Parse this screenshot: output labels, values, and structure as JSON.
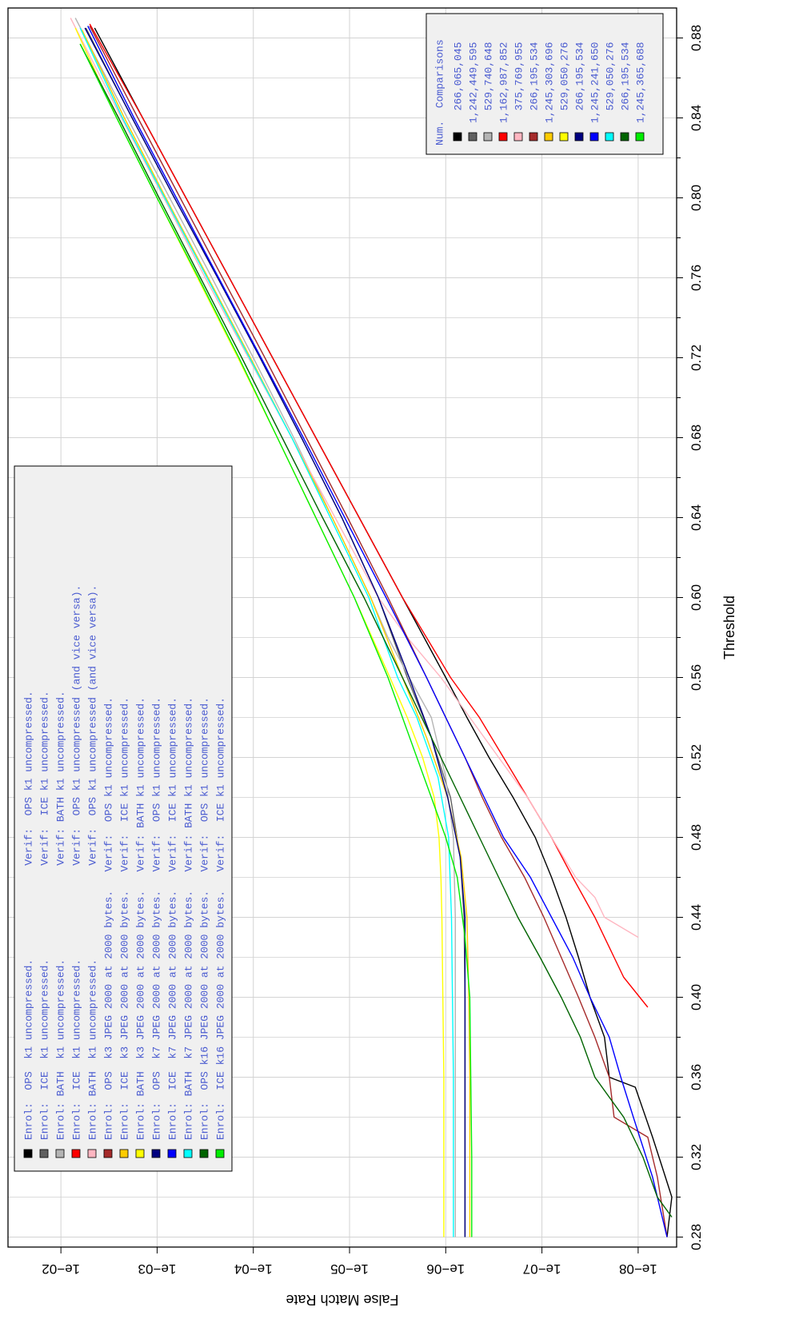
{
  "chart_data": {
    "type": "line",
    "orientation": "rotated-90-clockwise",
    "xlabel": "Threshold",
    "ylabel": "False Match Rate",
    "xlim": [
      0.275,
      0.895
    ],
    "ylim_log10": [
      -8.4,
      -1.45
    ],
    "y_scale": "log",
    "grid": true,
    "x_ticks": [
      "0.28",
      "0.32",
      "0.36",
      "0.40",
      "0.44",
      "0.48",
      "0.52",
      "0.56",
      "0.60",
      "0.64",
      "0.68",
      "0.72",
      "0.76",
      "0.80",
      "0.84",
      "0.88"
    ],
    "x_tick_values": [
      0.28,
      0.32,
      0.36,
      0.4,
      0.44,
      0.48,
      0.52,
      0.56,
      0.6,
      0.64,
      0.68,
      0.72,
      0.76,
      0.8,
      0.84,
      0.88
    ],
    "y_ticks": [
      "1e−02",
      "1e−03",
      "1e−04",
      "1e−05",
      "1e−06",
      "1e−07",
      "1e−08"
    ],
    "y_tick_values": [
      -2,
      -3,
      -4,
      -5,
      -6,
      -7,
      -8
    ],
    "legend_main": {
      "placement": "lower-left",
      "entries": [
        "Enrol:  OPS  k1 uncompressed.               Verif:  OPS k1 uncompressed.",
        "Enrol:  ICE  k1 uncompressed.               Verif:  ICE k1 uncompressed.",
        "Enrol: BATH  k1 uncompressed.               Verif: BATH k1 uncompressed.",
        "Enrol:  ICE  k1 uncompressed.               Verif:  OPS k1 uncompressed (and vice versa).",
        "Enrol: BATH  k1 uncompressed.               Verif:  OPS k1 uncompressed (and vice versa).",
        "Enrol:  OPS  k3 JPEG 2000 at 2000 bytes.   Verif:  OPS k1 uncompressed.",
        "Enrol:  ICE  k3 JPEG 2000 at 2000 bytes.   Verif:  ICE k1 uncompressed.",
        "Enrol: BATH  k3 JPEG 2000 at 2000 bytes.   Verif: BATH k1 uncompressed.",
        "Enrol:  OPS  k7 JPEG 2000 at 2000 bytes.   Verif:  OPS k1 uncompressed.",
        "Enrol:  ICE  k7 JPEG 2000 at 2000 bytes.   Verif:  ICE k1 uncompressed.",
        "Enrol: BATH  k7 JPEG 2000 at 2000 bytes.   Verif: BATH k1 uncompressed.",
        "Enrol:  OPS k16 JPEG 2000 at 2000 bytes.   Verif:  OPS k1 uncompressed.",
        "Enrol:  ICE k16 JPEG 2000 at 2000 bytes.   Verif:  ICE k1 uncompressed."
      ]
    },
    "legend_counts": {
      "placement": "upper-right",
      "header": "Num.  Comparisons",
      "entries": [
        "  266,065,045",
        "1,242,449,595",
        "  529,740,648",
        "1,162,987,852",
        "  375,769,955",
        "  266,195,534",
        "1,245,303,696",
        "  529,050,276",
        "  266,195,534",
        "1,245,241,650",
        "  529,050,276",
        "  266,195,534",
        "1,245,365,688"
      ]
    },
    "series": [
      {
        "color": "#000000",
        "x": [
          0.28,
          0.3,
          0.315,
          0.33,
          0.355,
          0.36,
          0.38,
          0.4,
          0.42,
          0.44,
          0.46,
          0.48,
          0.5,
          0.52,
          0.54,
          0.56,
          0.6,
          0.64,
          0.68,
          0.72,
          0.76,
          0.8,
          0.84,
          0.885
        ],
        "y": [
          -8.3,
          -8.35,
          -8.25,
          -8.15,
          -7.97,
          -7.7,
          -7.65,
          -7.5,
          -7.38,
          -7.25,
          -7.1,
          -6.93,
          -6.7,
          -6.45,
          -6.22,
          -6.0,
          -5.55,
          -5.1,
          -4.65,
          -4.2,
          -3.75,
          -3.3,
          -2.85,
          -2.35
        ]
      },
      {
        "color": "#606060",
        "x": [
          0.28,
          0.32,
          0.36,
          0.4,
          0.44,
          0.47,
          0.5,
          0.53,
          0.56,
          0.6,
          0.64,
          0.68,
          0.72,
          0.76,
          0.8,
          0.84,
          0.885
        ],
        "y": [
          -6.2,
          -6.2,
          -6.2,
          -6.2,
          -6.19,
          -6.15,
          -6.05,
          -5.85,
          -5.6,
          -5.3,
          -4.92,
          -4.5,
          -4.07,
          -3.63,
          -3.18,
          -2.74,
          -2.26
        ]
      },
      {
        "color": "#b4b4b4",
        "x": [
          0.28,
          0.36,
          0.44,
          0.48,
          0.51,
          0.54,
          0.56,
          0.58,
          0.6,
          0.64,
          0.68,
          0.72,
          0.76,
          0.8,
          0.84,
          0.89
        ],
        "y": [
          -6.1,
          -6.1,
          -6.1,
          -6.08,
          -6.0,
          -5.85,
          -5.62,
          -5.4,
          -5.22,
          -4.82,
          -4.42,
          -4.0,
          -3.57,
          -3.13,
          -2.69,
          -2.15
        ]
      },
      {
        "color": "#ff0000",
        "x": [
          0.395,
          0.41,
          0.42,
          0.44,
          0.46,
          0.48,
          0.5,
          0.52,
          0.54,
          0.56,
          0.58,
          0.6,
          0.64,
          0.68,
          0.72,
          0.76,
          0.8,
          0.84,
          0.887
        ],
        "y": [
          -8.1,
          -7.85,
          -7.75,
          -7.55,
          -7.32,
          -7.1,
          -6.85,
          -6.6,
          -6.35,
          -6.05,
          -5.8,
          -5.55,
          -5.1,
          -4.65,
          -4.2,
          -3.75,
          -3.3,
          -2.85,
          -2.3
        ]
      },
      {
        "color": "#ffb6c1",
        "x": [
          0.43,
          0.44,
          0.45,
          0.46,
          0.48,
          0.5,
          0.52,
          0.54,
          0.56,
          0.58,
          0.6,
          0.64,
          0.68,
          0.72,
          0.76,
          0.8,
          0.84,
          0.89
        ],
        "y": [
          -8.0,
          -7.65,
          -7.55,
          -7.35,
          -7.1,
          -6.85,
          -6.55,
          -6.25,
          -5.95,
          -5.6,
          -5.3,
          -4.85,
          -4.4,
          -3.95,
          -3.5,
          -3.07,
          -2.63,
          -2.1
        ]
      },
      {
        "color": "#a52a2a",
        "x": [
          0.28,
          0.31,
          0.33,
          0.34,
          0.36,
          0.38,
          0.4,
          0.42,
          0.44,
          0.46,
          0.48,
          0.5,
          0.52,
          0.54,
          0.56,
          0.6,
          0.64,
          0.68,
          0.72,
          0.76,
          0.8,
          0.84,
          0.886
        ],
        "y": [
          -8.3,
          -8.2,
          -8.1,
          -7.75,
          -7.7,
          -7.55,
          -7.38,
          -7.2,
          -7.02,
          -6.82,
          -6.58,
          -6.38,
          -6.2,
          -6.0,
          -5.8,
          -5.4,
          -4.98,
          -4.55,
          -4.12,
          -3.68,
          -3.24,
          -2.8,
          -2.3
        ]
      },
      {
        "color": "#ffcc00",
        "x": [
          0.28,
          0.32,
          0.36,
          0.4,
          0.44,
          0.47,
          0.5,
          0.53,
          0.56,
          0.6,
          0.64,
          0.68,
          0.72,
          0.76,
          0.8,
          0.84,
          0.884
        ],
        "y": [
          -6.25,
          -6.25,
          -6.25,
          -6.24,
          -6.22,
          -6.16,
          -6.02,
          -5.8,
          -5.55,
          -5.22,
          -4.82,
          -4.4,
          -3.97,
          -3.53,
          -3.09,
          -2.66,
          -2.22
        ]
      },
      {
        "color": "#ffff00",
        "x": [
          0.28,
          0.32,
          0.36,
          0.4,
          0.44,
          0.46,
          0.48,
          0.5,
          0.52,
          0.54,
          0.56,
          0.6,
          0.64,
          0.68,
          0.72,
          0.76,
          0.8,
          0.84,
          0.885
        ],
        "y": [
          -5.98,
          -5.98,
          -5.98,
          -5.97,
          -5.96,
          -5.95,
          -5.93,
          -5.88,
          -5.76,
          -5.6,
          -5.42,
          -5.05,
          -4.65,
          -4.25,
          -3.84,
          -3.42,
          -3.0,
          -2.58,
          -2.15
        ]
      },
      {
        "color": "#000080",
        "x": [
          0.28,
          0.32,
          0.36,
          0.4,
          0.44,
          0.47,
          0.5,
          0.53,
          0.56,
          0.6,
          0.64,
          0.68,
          0.72,
          0.76,
          0.8,
          0.84,
          0.885
        ],
        "y": [
          -6.2,
          -6.2,
          -6.2,
          -6.2,
          -6.2,
          -6.15,
          -6.02,
          -5.85,
          -5.62,
          -5.3,
          -4.92,
          -4.5,
          -4.07,
          -3.63,
          -3.18,
          -2.74,
          -2.25
        ]
      },
      {
        "color": "#0000ff",
        "x": [
          0.28,
          0.31,
          0.34,
          0.36,
          0.38,
          0.4,
          0.42,
          0.44,
          0.46,
          0.48,
          0.5,
          0.52,
          0.54,
          0.56,
          0.6,
          0.64,
          0.68,
          0.72,
          0.76,
          0.8,
          0.84,
          0.886
        ],
        "y": [
          -8.3,
          -8.15,
          -7.95,
          -7.82,
          -7.7,
          -7.5,
          -7.32,
          -7.1,
          -6.88,
          -6.6,
          -6.4,
          -6.2,
          -6.0,
          -5.8,
          -5.38,
          -4.95,
          -4.52,
          -4.08,
          -3.64,
          -3.2,
          -2.76,
          -2.28
        ]
      },
      {
        "color": "#00ffff",
        "x": [
          0.28,
          0.32,
          0.36,
          0.4,
          0.44,
          0.48,
          0.51,
          0.54,
          0.56,
          0.58,
          0.6,
          0.64,
          0.68,
          0.72,
          0.76,
          0.8,
          0.84,
          0.885
        ],
        "y": [
          -6.08,
          -6.08,
          -6.08,
          -6.07,
          -6.06,
          -6.03,
          -5.92,
          -5.7,
          -5.5,
          -5.35,
          -5.2,
          -4.8,
          -4.4,
          -3.96,
          -3.52,
          -3.08,
          -2.64,
          -2.2
        ]
      },
      {
        "color": "#006400",
        "x": [
          0.29,
          0.3,
          0.32,
          0.34,
          0.36,
          0.38,
          0.4,
          0.42,
          0.44,
          0.46,
          0.48,
          0.5,
          0.52,
          0.54,
          0.56,
          0.6,
          0.64,
          0.68,
          0.72,
          0.76,
          0.8,
          0.84,
          0.877
        ],
        "y": [
          -8.35,
          -8.2,
          -8.05,
          -7.85,
          -7.55,
          -7.4,
          -7.2,
          -6.98,
          -6.75,
          -6.55,
          -6.35,
          -6.15,
          -5.95,
          -5.75,
          -5.55,
          -5.15,
          -4.72,
          -4.3,
          -3.88,
          -3.45,
          -3.02,
          -2.6,
          -2.2
        ]
      },
      {
        "color": "#00ee00",
        "x": [
          0.28,
          0.32,
          0.36,
          0.4,
          0.43,
          0.46,
          0.48,
          0.5,
          0.52,
          0.54,
          0.56,
          0.6,
          0.64,
          0.68,
          0.72,
          0.76,
          0.8,
          0.84,
          0.877
        ],
        "y": [
          -6.27,
          -6.27,
          -6.26,
          -6.25,
          -6.2,
          -6.12,
          -6.0,
          -5.85,
          -5.7,
          -5.55,
          -5.4,
          -5.05,
          -4.65,
          -4.25,
          -3.85,
          -3.43,
          -3.0,
          -2.58,
          -2.2
        ]
      }
    ]
  }
}
